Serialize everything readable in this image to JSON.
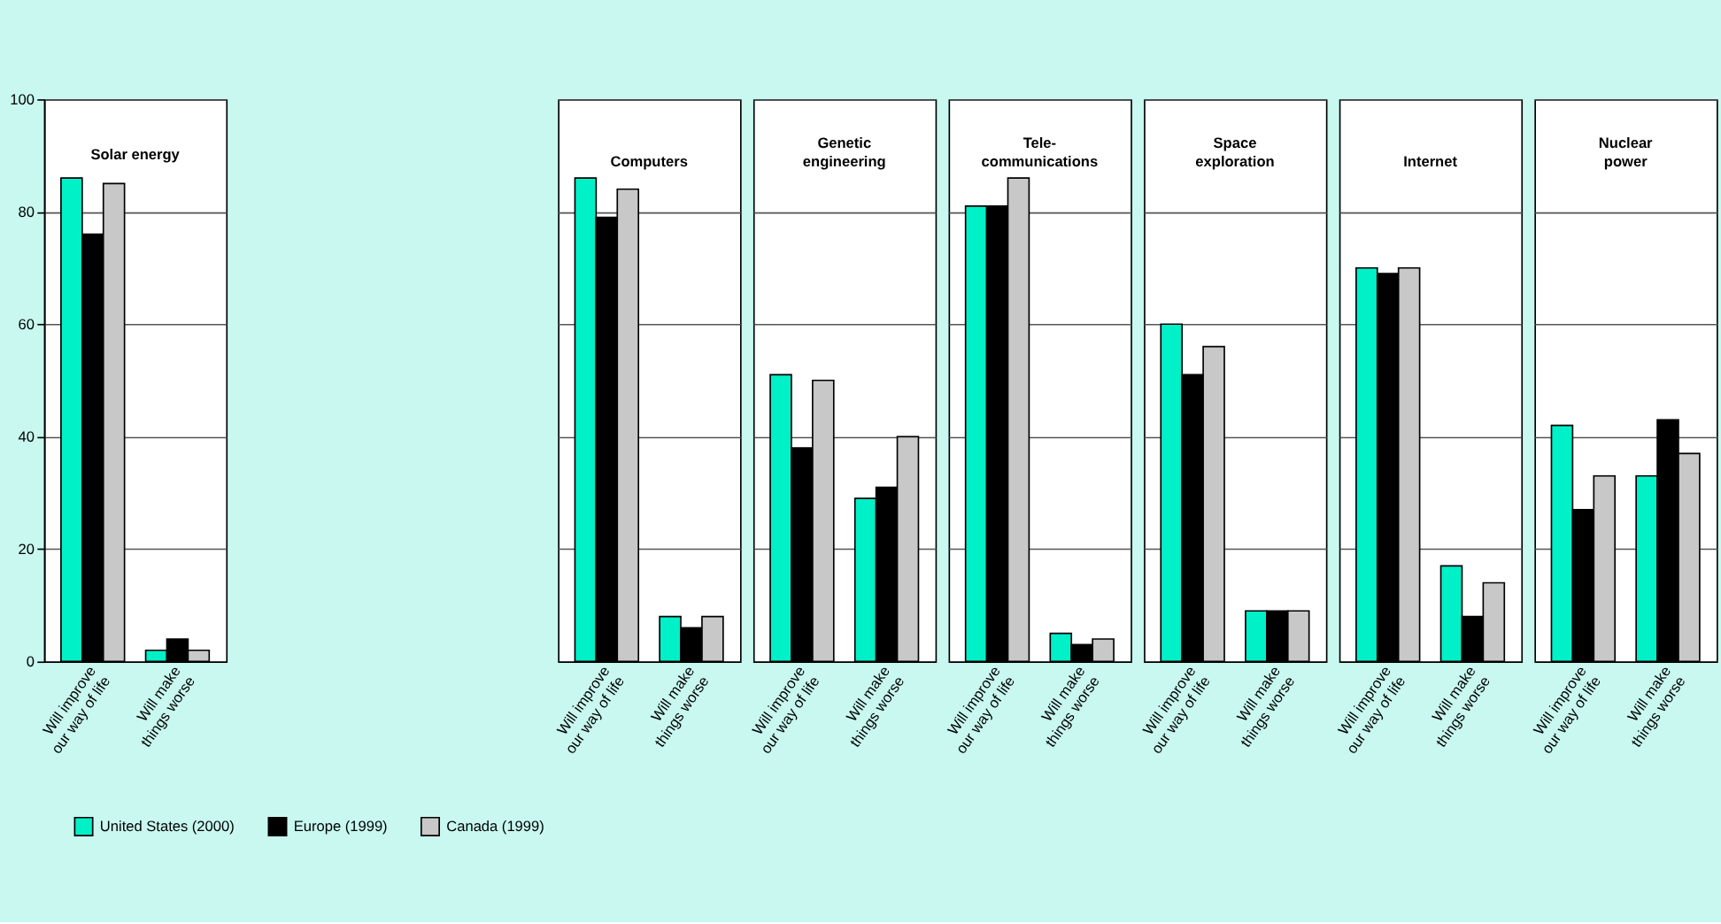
{
  "chart_data": [
    {
      "type": "bar",
      "title": "Solar energy",
      "categories": [
        "Will improve\nour way of life",
        "Will make\nthings worse"
      ],
      "ylim": [
        0,
        100
      ],
      "yticks": [
        0,
        20,
        40,
        60,
        80,
        100
      ],
      "grid": "y",
      "legend": "bottom",
      "series": [
        {
          "name": "United States (2000)",
          "color": "#00f0c8",
          "values": [
            86,
            2
          ]
        },
        {
          "name": "Europe (1999)",
          "color": "#000000",
          "values": [
            76,
            4
          ]
        },
        {
          "name": "Canada (1999)",
          "color": "#c8c8c8",
          "values": [
            85,
            2
          ]
        }
      ]
    },
    {
      "type": "bar",
      "title": "Computers",
      "categories": [
        "Will improve\nour way of life",
        "Will make\nthings worse"
      ],
      "ylim": [
        0,
        100
      ],
      "yticks": [
        0,
        20,
        40,
        60,
        80,
        100
      ],
      "grid": "y",
      "tick_labels": "x",
      "series": [
        {
          "color": "#00f0c8",
          "values": [
            86,
            8
          ]
        },
        {
          "color": "#000000",
          "values": [
            79,
            6
          ]
        },
        {
          "color": "#c8c8c8",
          "values": [
            84,
            8
          ]
        }
      ]
    },
    {
      "type": "bar",
      "title": "Genetic\nengineering",
      "categories": [
        "Will improve\nour way of life",
        "Will make\nthings worse"
      ],
      "ylim": [
        0,
        100
      ],
      "yticks": [
        0,
        20,
        40,
        60,
        80,
        100
      ],
      "grid": "y",
      "tick_labels": "x",
      "series": [
        {
          "color": "#00f0c8",
          "values": [
            51,
            29
          ]
        },
        {
          "color": "#000000",
          "values": [
            38,
            31
          ]
        },
        {
          "color": "#c8c8c8",
          "values": [
            50,
            40
          ]
        }
      ]
    },
    {
      "type": "bar",
      "title": "Tele-\ncommunications",
      "categories": [
        "Will improve\nour way of life",
        "Will make\nthings worse"
      ],
      "ylim": [
        0,
        100
      ],
      "yticks": [
        0,
        20,
        40,
        60,
        80,
        100
      ],
      "grid": "y",
      "tick_labels": "x",
      "series": [
        {
          "color": "#00f0c8",
          "values": [
            81,
            5
          ]
        },
        {
          "color": "#000000",
          "values": [
            81,
            3
          ]
        },
        {
          "color": "#c8c8c8",
          "values": [
            86,
            4
          ]
        }
      ]
    },
    {
      "type": "bar",
      "title": "Space\nexploration",
      "categories": [
        "Will improve\nour way of life",
        "Will make\nthings worse"
      ],
      "ylim": [
        0,
        100
      ],
      "yticks": [
        0,
        20,
        40,
        60,
        80,
        100
      ],
      "grid": "y",
      "tick_labels": "x",
      "series": [
        {
          "color": "#00f0c8",
          "values": [
            60,
            9
          ]
        },
        {
          "color": "#000000",
          "values": [
            51,
            9
          ]
        },
        {
          "color": "#c8c8c8",
          "values": [
            56,
            9
          ]
        }
      ]
    },
    {
      "type": "bar",
      "title": "Internet",
      "categories": [
        "Will improve\nour way of life",
        "Will make\nthings worse"
      ],
      "ylim": [
        0,
        100
      ],
      "yticks": [
        0,
        20,
        40,
        60,
        80,
        100
      ],
      "grid": "y",
      "tick_labels": "x",
      "series": [
        {
          "color": "#00f0c8",
          "values": [
            70,
            17
          ]
        },
        {
          "color": "#000000",
          "values": [
            69,
            8
          ]
        },
        {
          "color": "#c8c8c8",
          "values": [
            70,
            14
          ]
        }
      ]
    },
    {
      "type": "bar",
      "title": "Nuclear\npower",
      "categories": [
        "Will improve\nour way of life",
        "Will make\nthings worse"
      ],
      "ylim": [
        0,
        100
      ],
      "yticks": [
        0,
        20,
        40,
        60,
        80,
        100
      ],
      "grid": "y",
      "tick_labels": "x",
      "series": [
        {
          "color": "#00f0c8",
          "values": [
            42,
            33
          ]
        },
        {
          "color": "#000000",
          "values": [
            27,
            43
          ]
        },
        {
          "color": "#c8c8c8",
          "values": [
            33,
            37
          ]
        }
      ]
    }
  ]
}
